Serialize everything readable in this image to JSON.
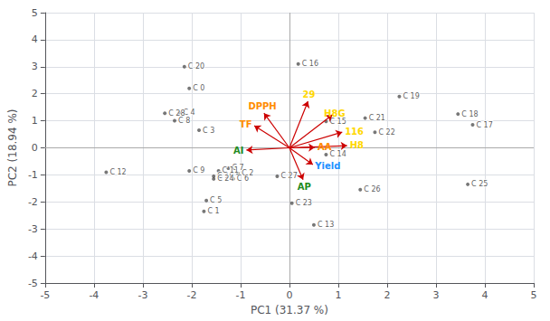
{
  "chart_data": {
    "type": "biplot",
    "xlabel": "PC1 (31.37 %)",
    "ylabel": "PC2 (18.94 %)",
    "xlim": [
      -5,
      5
    ],
    "ylim": [
      -5,
      5
    ],
    "xticks": [
      -5,
      -4,
      -3,
      -2,
      -1,
      0,
      1,
      2,
      3,
      4,
      5
    ],
    "yticks": [
      -5,
      -4,
      -3,
      -2,
      -1,
      0,
      1,
      2,
      3,
      4,
      5
    ],
    "grid": true,
    "points": {
      "type": "scatter",
      "color": "#555555",
      "labels": [
        "C 0",
        "C 1",
        "C 2",
        "C 3",
        "C 4",
        "C 5",
        "C 6",
        "C 7",
        "C 8",
        "C 9",
        "C 10",
        "C 11",
        "C 12",
        "C 13",
        "C 14",
        "C 15",
        "C 16",
        "C 17",
        "C 18",
        "C 19",
        "C 20",
        "C 21",
        "C 22",
        "C 23",
        "C 24",
        "C 25",
        "C 26",
        "C 27",
        "C 28"
      ],
      "x": [
        -2.05,
        -1.75,
        -1.05,
        -1.85,
        -2.25,
        -1.7,
        -1.15,
        -1.25,
        -2.35,
        -2.05,
        -1.55,
        -1.45,
        -3.75,
        0.5,
        0.75,
        0.75,
        0.18,
        3.75,
        3.45,
        2.25,
        -2.15,
        1.55,
        1.75,
        0.05,
        -1.55,
        3.65,
        1.45,
        -0.25,
        -2.55
      ],
      "y": [
        2.2,
        -2.35,
        -0.95,
        0.65,
        1.3,
        -1.95,
        -1.15,
        -0.75,
        1.0,
        -0.85,
        -1.05,
        -0.85,
        -0.9,
        -2.85,
        -0.25,
        0.98,
        3.1,
        0.85,
        1.25,
        1.9,
        3.0,
        1.1,
        0.58,
        -2.05,
        -1.15,
        -1.35,
        -1.55,
        -1.05,
        1.28
      ]
    },
    "loadings": {
      "type": "arrow",
      "color": "#CC0000",
      "labels": [
        "DPPH",
        "TF",
        "AI",
        "AA",
        "AP",
        "Yield",
        "29",
        "H8G",
        "116",
        "H8"
      ],
      "x": [
        -0.52,
        -0.72,
        -0.88,
        0.52,
        0.28,
        0.48,
        0.38,
        0.88,
        1.08,
        1.18
      ],
      "y": [
        1.28,
        0.82,
        -0.08,
        0.02,
        -1.18,
        -0.62,
        1.72,
        1.22,
        0.58,
        0.08
      ],
      "colors": [
        "#FF8C00",
        "#FF8C00",
        "#228B22",
        "#FF8C00",
        "#228B22",
        "#1E90FF",
        "#FFD700",
        "#FFD700",
        "#FFD700",
        "#FFD700"
      ]
    }
  }
}
